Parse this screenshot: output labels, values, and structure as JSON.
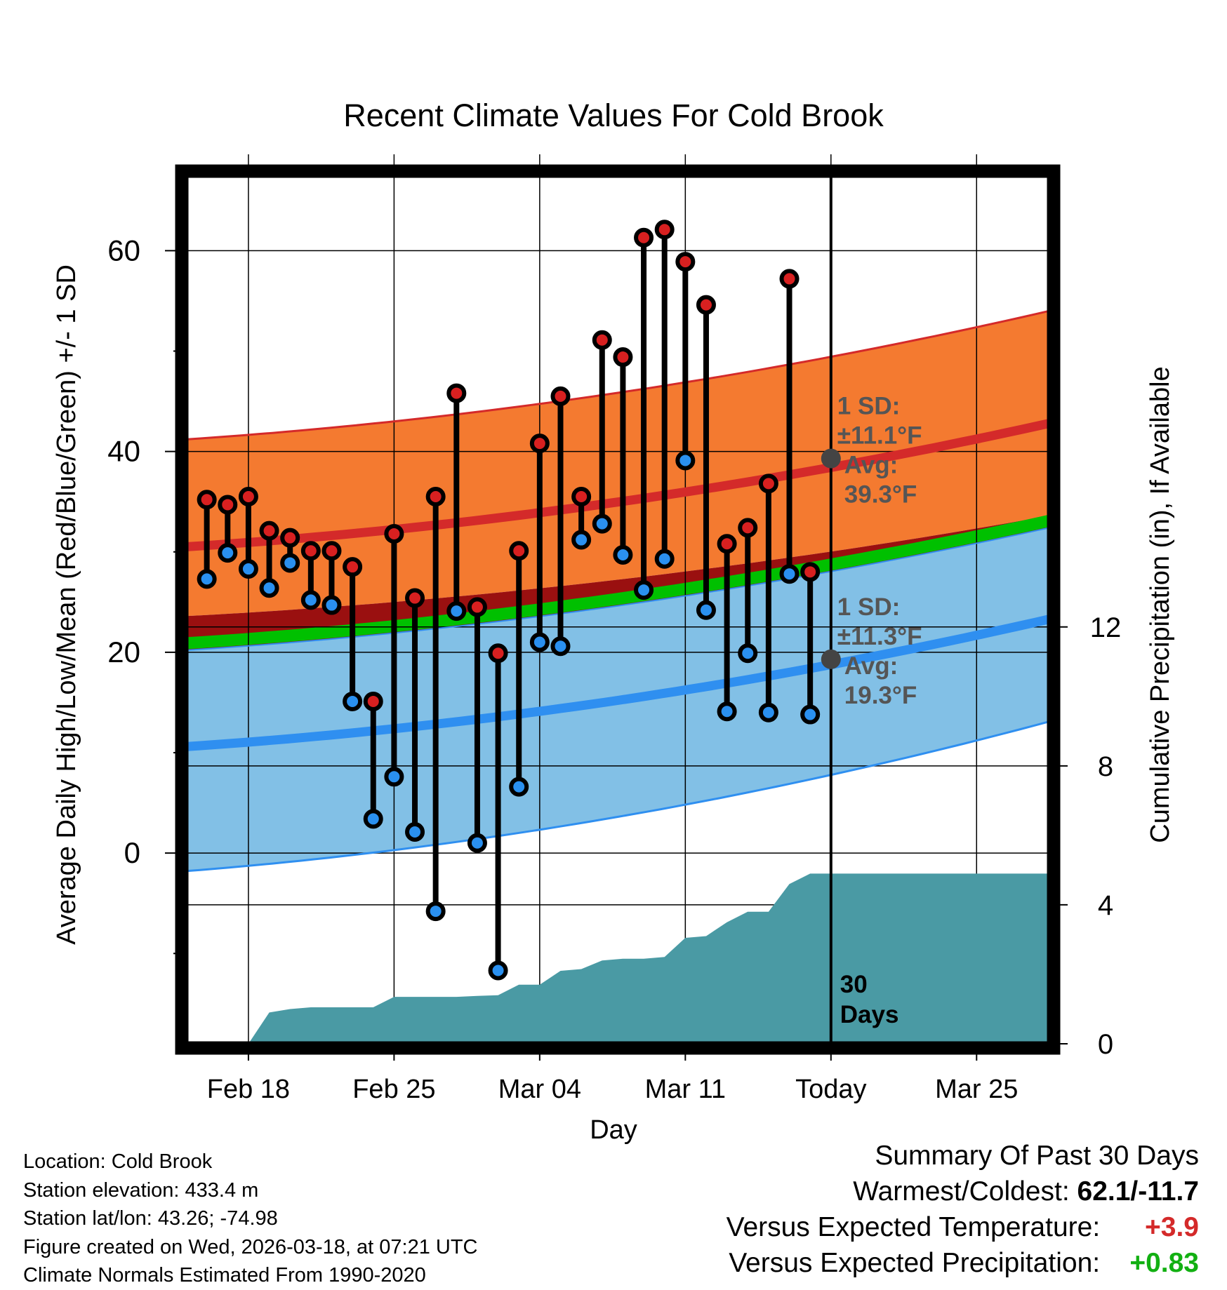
{
  "chart_data": {
    "type": "line",
    "title": "Recent Climate Values For Cold Brook",
    "xlabel": "Day",
    "ylabel": "Average Daily High/Low/Mean (Red/Blue/Green) +/- 1 SD",
    "ylabel_right": "Cumulative Precipitation (in), If Available",
    "ylim": [
      -19,
      67.5
    ],
    "y_ticks": [
      0,
      20,
      40,
      60
    ],
    "y_ticks_right": [
      0,
      4,
      8,
      12
    ],
    "precip_ylim": [
      0,
      25
    ],
    "xlim": [
      0,
      41.5
    ],
    "x_ticks": [
      {
        "x": 3,
        "label": "Feb 18"
      },
      {
        "x": 10,
        "label": "Feb 25"
      },
      {
        "x": 17,
        "label": "Mar 04"
      },
      {
        "x": 24,
        "label": "Mar 11"
      },
      {
        "x": 31,
        "label": "Today"
      },
      {
        "x": 38,
        "label": "Mar 25"
      }
    ],
    "today_x": 31,
    "days_label": "30 Days",
    "normal_high": {
      "start": 30.5,
      "end": 42.8,
      "sd_label": "1 SD:",
      "sd_value": "±11.1°F",
      "avg_label": "Avg:",
      "avg_value": "39.3°F",
      "avg": 39.3
    },
    "normal_low": {
      "start": 10.6,
      "end": 23.3,
      "sd_label": "1 SD:",
      "sd_value": "±11.3°F",
      "avg_label": "Avg:",
      "avg_value": "19.3°F",
      "avg": 19.3
    },
    "normal_mean": {
      "start": 20.9,
      "end": 33.1
    },
    "normal_high_upper": {
      "start": 41.2,
      "end": 54.0
    },
    "normal_high_lower": {
      "start": 23.6,
      "end": 33.6
    },
    "normal_low_upper": {
      "start": 20.2,
      "end": 32.4
    },
    "normal_low_lower": {
      "start": -1.8,
      "end": 13.1
    },
    "days_x": [
      1,
      2,
      3,
      4,
      5,
      6,
      7,
      8,
      9,
      10,
      11,
      12,
      13,
      14,
      15,
      16,
      17,
      18,
      19,
      20,
      21,
      22,
      23,
      24,
      25,
      26,
      27,
      28,
      29,
      30
    ],
    "highs": [
      35.2,
      34.7,
      35.5,
      32.1,
      31.4,
      30.1,
      30.1,
      28.5,
      15.1,
      31.8,
      25.4,
      35.5,
      45.8,
      24.5,
      19.9,
      30.1,
      40.8,
      45.5,
      35.5,
      51.1,
      49.4,
      61.3,
      62.1,
      58.9,
      54.6,
      30.8,
      32.4,
      36.8,
      57.2,
      28.0
    ],
    "lows": [
      27.3,
      29.9,
      28.3,
      26.4,
      28.9,
      25.2,
      24.7,
      15.1,
      3.4,
      7.6,
      2.1,
      -5.8,
      24.1,
      1.0,
      -11.7,
      6.6,
      21.0,
      20.6,
      31.2,
      32.8,
      29.7,
      26.2,
      29.3,
      39.1,
      24.2,
      14.1,
      19.9,
      14.0,
      27.8,
      13.8
    ],
    "precip_x": [
      0,
      3,
      4,
      5,
      6,
      7,
      8,
      9,
      10,
      11,
      12,
      13,
      14,
      15,
      16,
      17,
      18,
      19,
      20,
      21,
      22,
      23,
      24,
      25,
      26,
      27,
      28,
      29,
      30,
      31,
      41.5
    ],
    "precip": [
      0,
      0,
      0.9,
      1.0,
      1.05,
      1.05,
      1.05,
      1.05,
      1.35,
      1.35,
      1.35,
      1.35,
      1.38,
      1.4,
      1.7,
      1.7,
      2.1,
      2.15,
      2.4,
      2.45,
      2.45,
      2.5,
      3.05,
      3.1,
      3.5,
      3.8,
      3.8,
      4.6,
      4.9,
      4.9,
      4.9
    ]
  },
  "info": {
    "location": "Location: Cold Brook",
    "elevation": "Station elevation: 433.4 m",
    "latlon": "Station lat/lon: 43.26; -74.98",
    "created": "Figure created on Wed, 2026-03-18, at 07:21 UTC",
    "normals": "Climate Normals Estimated From 1990-2020"
  },
  "summary": {
    "title": "Summary Of Past 30 Days",
    "warm_cold_label": "Warmest/Coldest:",
    "warm_cold_value": "62.1/-11.7",
    "temp_label": "Versus Expected Temperature:",
    "temp_value": "+3.9",
    "precip_label": "Versus Expected Precipitation:",
    "precip_value": "+0.83"
  },
  "colors": {
    "high_band": "#f47a30",
    "high_line": "#d42a2a",
    "low_band": "#82c0e6",
    "low_line": "#2f8ff0",
    "mean_line": "#00c000",
    "overlap": "#9a1010",
    "precip": "#4a9aa4",
    "high_dot": "#d82020",
    "low_dot": "#2a90f0",
    "temp_delta": "#d42a2a",
    "precip_delta": "#12b012"
  }
}
